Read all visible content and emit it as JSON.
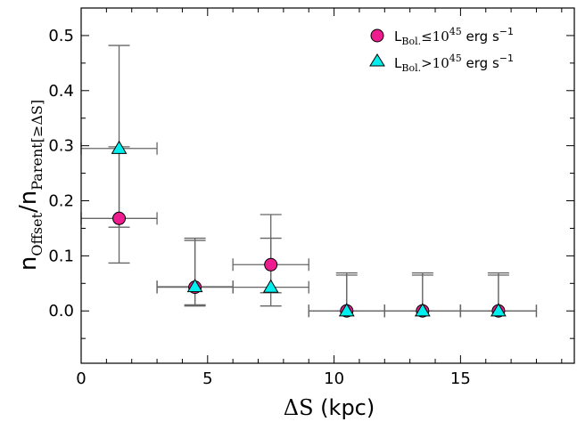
{
  "chart_data": {
    "type": "scatter",
    "xlim": [
      0,
      19.5
    ],
    "ylim": [
      -0.095,
      0.55
    ],
    "x_ticks": [
      0,
      5,
      10,
      15
    ],
    "x_tick_labels": [
      "0",
      "5",
      "10",
      "15"
    ],
    "y_ticks": [
      0.0,
      0.1,
      0.2,
      0.3,
      0.4,
      0.5
    ],
    "y_tick_labels": [
      "0.0",
      "0.1",
      "0.2",
      "0.3",
      "0.4",
      "0.5"
    ],
    "x_minor_step": 1,
    "y_minor_step": 0.05,
    "xlabel": {
      "prefix": "ΔS",
      "suffix": " (kpc)"
    },
    "ylabel": {
      "n1": "n",
      "sub1": "Offset",
      "slash": "/",
      "n2": "n",
      "sub2": "Parent[≥ΔS]"
    },
    "legend_position": "top-right",
    "series": [
      {
        "name": "L_Bol. ≤ 10^45 erg s^-1",
        "legend": {
          "L": "L",
          "sub": "Bol.",
          "op": "≤",
          "base": "10",
          "exp": "45",
          "unit": " erg s",
          "unit_exp": "−1"
        },
        "marker": "circle",
        "color": "#ee1d8f",
        "points": [
          {
            "x": 1.5,
            "y": 0.168,
            "xerr": 1.5,
            "ylo": 0.087,
            "yhi": 0.298
          },
          {
            "x": 4.5,
            "y": 0.043,
            "xerr": 1.5,
            "ylo": 0.011,
            "yhi": 0.132
          },
          {
            "x": 7.5,
            "y": 0.084,
            "xerr": 1.5,
            "ylo": 0.033,
            "yhi": 0.175
          },
          {
            "x": 10.5,
            "y": 0.0,
            "xerr": 1.5,
            "ylo": 0.0,
            "yhi": 0.069
          },
          {
            "x": 13.5,
            "y": 0.0,
            "xerr": 1.5,
            "ylo": 0.0,
            "yhi": 0.069
          },
          {
            "x": 16.5,
            "y": 0.0,
            "xerr": 1.5,
            "ylo": 0.0,
            "yhi": 0.069
          }
        ]
      },
      {
        "name": "L_Bol. > 10^45 erg s^-1",
        "legend": {
          "L": "L",
          "sub": "Bol.",
          "op": ">",
          "base": "10",
          "exp": "45",
          "unit": " erg s",
          "unit_exp": "−1"
        },
        "marker": "triangle",
        "color": "#00eeee",
        "points": [
          {
            "x": 1.5,
            "y": 0.295,
            "xerr": 1.5,
            "ylo": 0.152,
            "yhi": 0.482
          },
          {
            "x": 4.5,
            "y": 0.044,
            "xerr": 1.5,
            "ylo": 0.009,
            "yhi": 0.128
          },
          {
            "x": 7.5,
            "y": 0.043,
            "xerr": 1.5,
            "ylo": 0.009,
            "yhi": 0.132
          },
          {
            "x": 10.5,
            "y": 0.0,
            "xerr": 1.5,
            "ylo": 0.0,
            "yhi": 0.065
          },
          {
            "x": 13.5,
            "y": 0.0,
            "xerr": 1.5,
            "ylo": 0.0,
            "yhi": 0.065
          },
          {
            "x": 16.5,
            "y": 0.0,
            "xerr": 1.5,
            "ylo": 0.0,
            "yhi": 0.065
          }
        ]
      }
    ]
  }
}
